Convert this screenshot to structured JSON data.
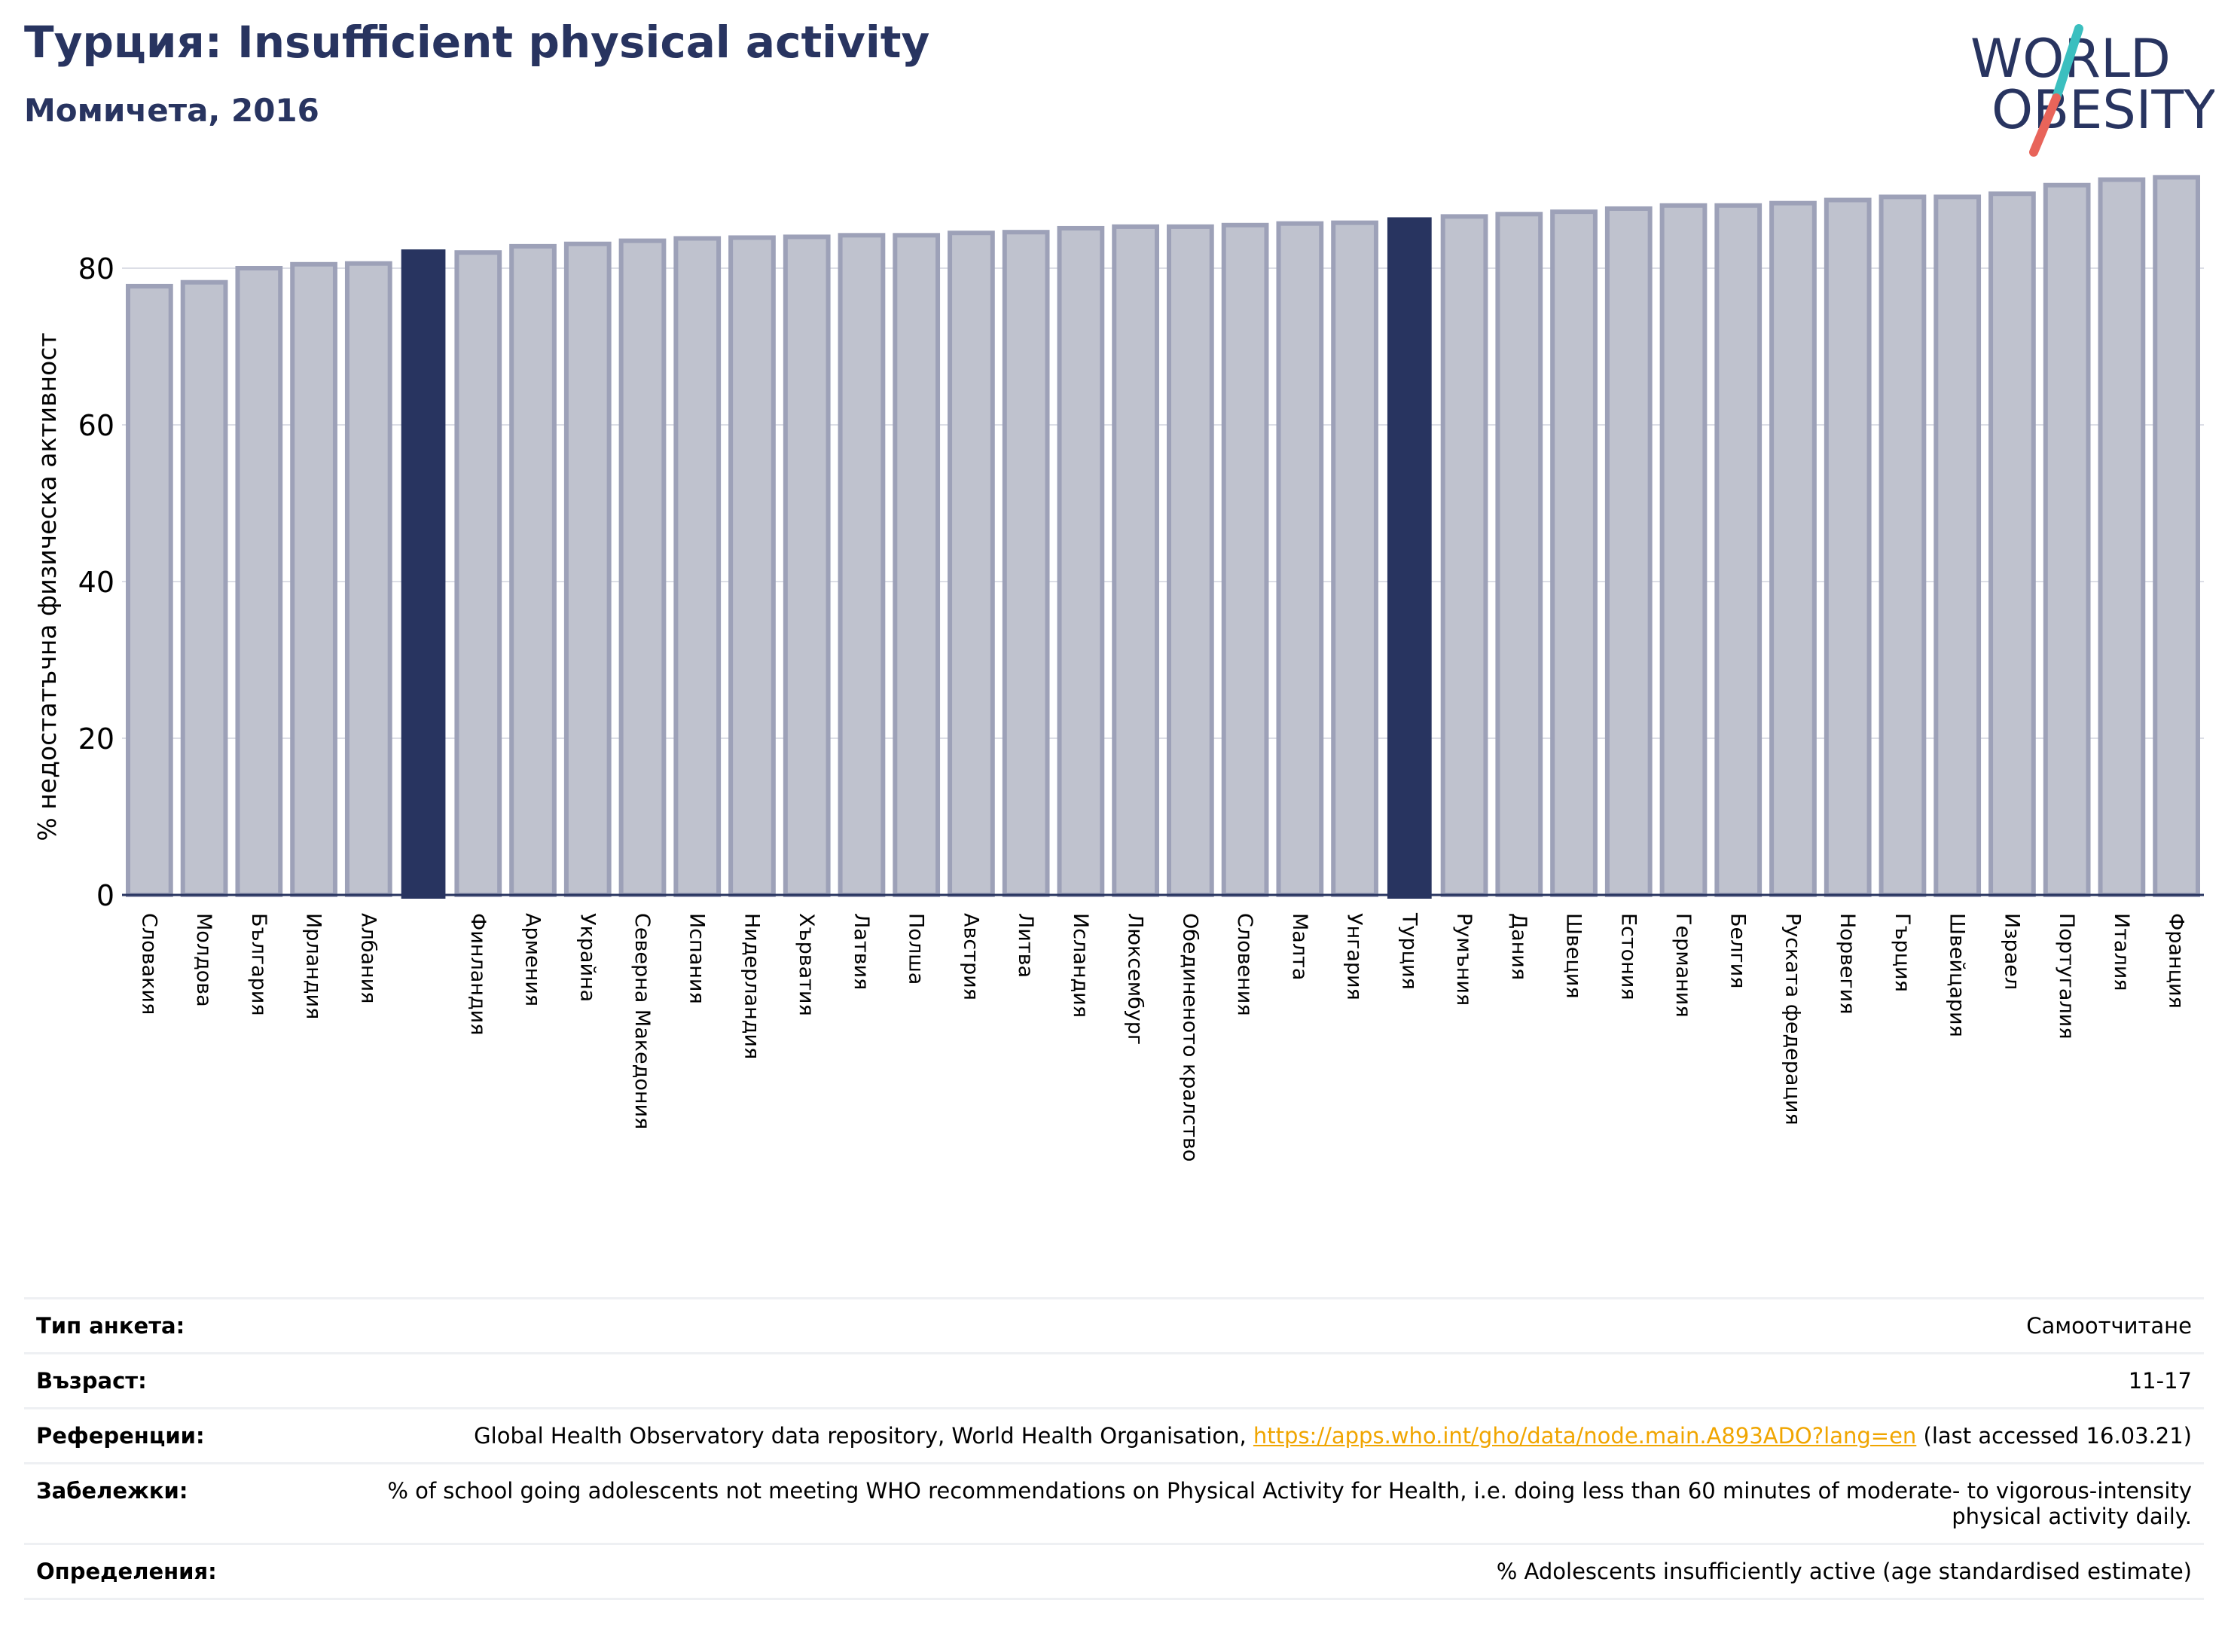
{
  "header": {
    "title": "Турция: Insufficient physical activity",
    "subtitle": "Момичета, 2016"
  },
  "logo": {
    "line1": "WORLD",
    "line2": "OBESITY"
  },
  "colors": {
    "highlight": "#283460",
    "bar_fill": "#bfc2ce",
    "bar_edge": "#9da1b8",
    "grid": "#dcdee6",
    "logo_text": "#283460",
    "logo_slash_top": "#3bbfbf",
    "logo_slash_bottom": "#e8645a",
    "link": "#f0a500"
  },
  "chart_data": {
    "type": "bar",
    "ylabel": "% недостатъчна физическа активност",
    "xlabel": "",
    "ylim": [
      0,
      95
    ],
    "yticks": [
      0,
      20,
      40,
      60,
      80
    ],
    "grid": true,
    "categories": [
      "Словакия",
      "Молдова",
      "България",
      "Ирландия",
      "Албания",
      "",
      "Финландия",
      "Армения",
      "Украйна",
      "Северна Македония",
      "Испания",
      "Нидерландия",
      "Хърватия",
      "Латвия",
      "Полша",
      "Австрия",
      "Литва",
      "Исландия",
      "Люксембург",
      "Обединеното кралство",
      "Словения",
      "Малта",
      "Унгария",
      "Турция",
      "Румъния",
      "Дания",
      "Швеция",
      "Естония",
      "Германия",
      "Белгия",
      "Руската федерация",
      "Норвегия",
      "Гърция",
      "Швейцария",
      "Израел",
      "Португалия",
      "Италия",
      "Франция"
    ],
    "values": [
      77.7,
      78.2,
      80.0,
      80.5,
      80.6,
      82.3,
      82.0,
      82.8,
      83.1,
      83.5,
      83.8,
      83.9,
      84.0,
      84.2,
      84.2,
      84.5,
      84.6,
      85.1,
      85.3,
      85.3,
      85.5,
      85.7,
      85.8,
      86.4,
      86.6,
      86.9,
      87.2,
      87.6,
      88.0,
      88.0,
      88.3,
      88.7,
      89.1,
      89.1,
      89.5,
      90.6,
      91.3,
      91.6
    ],
    "highlighted": [
      5,
      23
    ]
  },
  "info": [
    {
      "label": "Тип анкета:",
      "value": "Самоотчитане"
    },
    {
      "label": "Възраст:",
      "value": "11-17"
    },
    {
      "label": "Референции:",
      "value_prefix": "Global Health Observatory data repository, World Health Organisation, ",
      "link": "https://apps.who.int/gho/data/node.main.A893ADO?lang=en",
      "value_suffix": " (last accessed 16.03.21)"
    },
    {
      "label": "Забележки:",
      "value": "% of school going adolescents not meeting WHO recommendations on Physical Activity for Health, i.e. doing less than 60 minutes of moderate- to vigorous-intensity physical activity daily."
    },
    {
      "label": "Определения:",
      "value": "% Adolescents insufficiently active (age standardised estimate)"
    }
  ]
}
